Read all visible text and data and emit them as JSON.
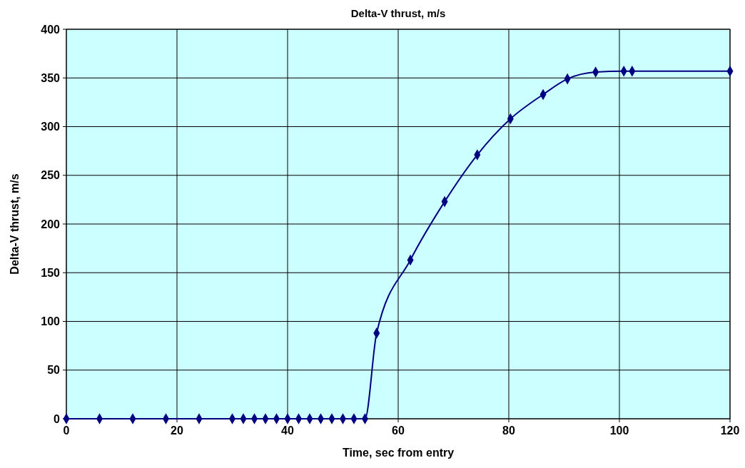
{
  "chart_data": {
    "type": "line",
    "title": "Delta-V thrust, m/s",
    "xlabel": "Time, sec from entry",
    "ylabel": "Delta-V thrust, m/s",
    "x": [
      0,
      6,
      12,
      18,
      24,
      30,
      32,
      34,
      36,
      38,
      40,
      42,
      44,
      46,
      48,
      50,
      52,
      54,
      56.1,
      62.2,
      68.4,
      74.3,
      80.3,
      86.2,
      90.6,
      95.7,
      100.8,
      102.3,
      120
    ],
    "series": [
      {
        "color": "#000080",
        "values": [
          0,
          0,
          0,
          0,
          0,
          0,
          0,
          0,
          0,
          0,
          0,
          0,
          0,
          0,
          0,
          0,
          0,
          0,
          88,
          163,
          223,
          271,
          308,
          333,
          349,
          356,
          357,
          357,
          357
        ]
      }
    ],
    "xlim": [
      0,
      120
    ],
    "xticks": [
      0,
      20,
      40,
      60,
      80,
      100,
      120
    ],
    "ylim": [
      0,
      400
    ],
    "yticks": [
      0,
      50,
      100,
      150,
      200,
      250,
      300,
      350,
      400
    ],
    "grid": true,
    "marker": "diamond",
    "line_style": "solid"
  }
}
